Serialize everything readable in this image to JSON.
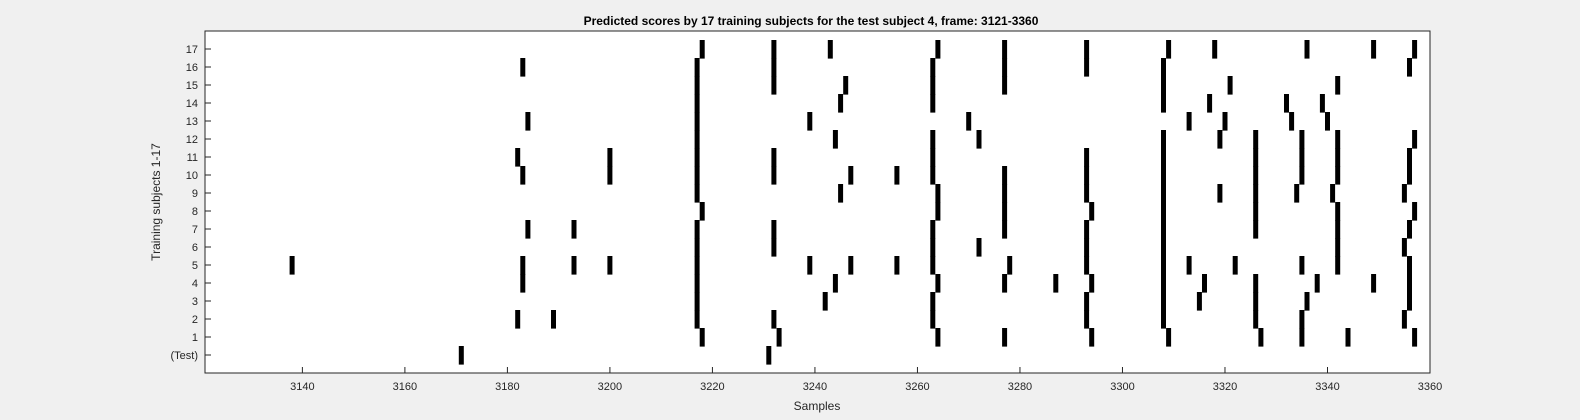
{
  "chart_data": {
    "type": "raster",
    "title": "Predicted scores by 17 training subjects for the test subject 4, frame: 3121-3360",
    "xlabel": "Samples",
    "ylabel": "Training subjects 1-17",
    "xlim": [
      3121,
      3360
    ],
    "x_ticks": [
      3140,
      3160,
      3180,
      3200,
      3220,
      3240,
      3260,
      3280,
      3300,
      3320,
      3340,
      3360
    ],
    "y_tick_labels": [
      "(Test)",
      "1",
      "2",
      "3",
      "4",
      "5",
      "6",
      "7",
      "8",
      "9",
      "10",
      "11",
      "12",
      "13",
      "14",
      "15",
      "16",
      "17"
    ],
    "grid": false,
    "mark_color": "#000000",
    "rows": [
      {
        "label": "17",
        "events": [
          3218,
          3232,
          3243,
          3264,
          3277,
          3293,
          3309,
          3318,
          3336,
          3349,
          3357
        ]
      },
      {
        "label": "16",
        "events": [
          3183,
          3217,
          3232,
          3263,
          3277,
          3293,
          3308,
          3356
        ]
      },
      {
        "label": "15",
        "events": [
          3217,
          3232,
          3246,
          3263,
          3277,
          3308,
          3321,
          3342
        ]
      },
      {
        "label": "14",
        "events": [
          3217,
          3245,
          3263,
          3308,
          3317,
          3332,
          3339
        ]
      },
      {
        "label": "13",
        "events": [
          3184,
          3217,
          3239,
          3270,
          3313,
          3320,
          3333,
          3340
        ]
      },
      {
        "label": "12",
        "events": [
          3217,
          3244,
          3263,
          3272,
          3308,
          3319,
          3326,
          3335,
          3342,
          3357
        ]
      },
      {
        "label": "11",
        "events": [
          3182,
          3200,
          3217,
          3232,
          3263,
          3293,
          3308,
          3326,
          3335,
          3342,
          3356
        ]
      },
      {
        "label": "10",
        "events": [
          3183,
          3200,
          3217,
          3232,
          3247,
          3256,
          3263,
          3277,
          3293,
          3308,
          3326,
          3335,
          3342,
          3356
        ]
      },
      {
        "label": "9",
        "events": [
          3217,
          3245,
          3264,
          3277,
          3293,
          3308,
          3319,
          3326,
          3334,
          3341,
          3355
        ]
      },
      {
        "label": "8",
        "events": [
          3218,
          3264,
          3277,
          3294,
          3308,
          3326,
          3342,
          3357
        ]
      },
      {
        "label": "7",
        "events": [
          3184,
          3193,
          3217,
          3232,
          3263,
          3277,
          3293,
          3308,
          3326,
          3342,
          3356
        ]
      },
      {
        "label": "6",
        "events": [
          3217,
          3232,
          3263,
          3272,
          3293,
          3308,
          3342,
          3355
        ]
      },
      {
        "label": "5",
        "events": [
          3138,
          3183,
          3193,
          3200,
          3217,
          3239,
          3247,
          3256,
          3263,
          3278,
          3293,
          3308,
          3313,
          3322,
          3335,
          3342,
          3356
        ]
      },
      {
        "label": "4",
        "events": [
          3183,
          3217,
          3244,
          3264,
          3277,
          3287,
          3294,
          3308,
          3316,
          3326,
          3338,
          3349,
          3356
        ]
      },
      {
        "label": "3",
        "events": [
          3217,
          3242,
          3263,
          3293,
          3308,
          3315,
          3326,
          3336,
          3356
        ]
      },
      {
        "label": "2",
        "events": [
          3182,
          3189,
          3217,
          3232,
          3263,
          3293,
          3308,
          3326,
          3335,
          3355
        ]
      },
      {
        "label": "1",
        "events": [
          3218,
          3233,
          3264,
          3277,
          3294,
          3309,
          3327,
          3335,
          3344,
          3357
        ]
      },
      {
        "label": "(Test)",
        "events": [
          3171,
          3231
        ]
      }
    ]
  }
}
